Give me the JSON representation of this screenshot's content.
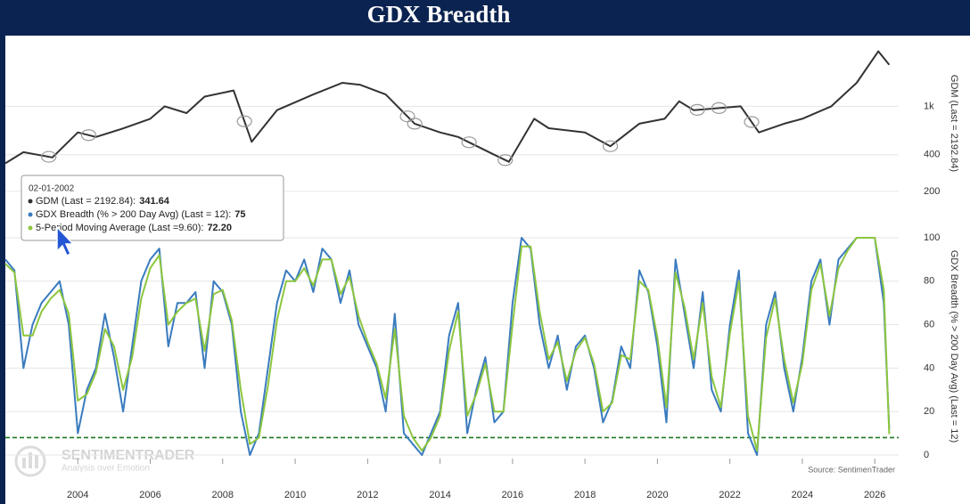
{
  "title": "GDX Breadth",
  "watermark": {
    "name": "SENTIMENTRADER",
    "tagline": "Analysis over Emotion"
  },
  "tooltip": {
    "date": "02-01-2002",
    "labels": [
      "GDM (Last = 2192.84):",
      "GDX Breadth (% > 200 Day Avg) (Last = 12):",
      "5-Period Moving Average (Last =9.60):"
    ],
    "values": [
      341.64,
      75,
      72.2
    ],
    "value_labels": [
      "341.64",
      "75",
      "72.20"
    ]
  },
  "chart_data": [
    {
      "type": "line",
      "y_scale": "log",
      "grid": true,
      "x": [
        2002.0,
        2002.5,
        2003.3,
        2004.0,
        2004.5,
        2005.2,
        2006.0,
        2006.4,
        2007.0,
        2007.5,
        2008.3,
        2008.8,
        2009.5,
        2010.5,
        2011.3,
        2011.8,
        2012.5,
        2013.3,
        2014.0,
        2014.5,
        2015.5,
        2015.9,
        2016.6,
        2017.0,
        2018.0,
        2018.7,
        2019.5,
        2020.2,
        2020.6,
        2021.0,
        2022.3,
        2022.8,
        2023.5,
        2024.0,
        2024.8,
        2025.5,
        2026.1,
        2026.4
      ],
      "series": [
        {
          "name": "GDM (Last = 2192.84)",
          "color": "#333333",
          "values": [
            340,
            420,
            380,
            610,
            560,
            650,
            790,
            1000,
            880,
            1200,
            1350,
            510,
            930,
            1250,
            1560,
            1500,
            1250,
            720,
            610,
            560,
            400,
            350,
            790,
            660,
            610,
            470,
            720,
            790,
            1100,
            930,
            1000,
            610,
            720,
            790,
            1000,
            1560,
            2830,
            2190
          ]
        }
      ],
      "ylim": [
        150,
        3500
      ],
      "yticks": [
        200,
        400,
        {
          "value": 1000,
          "label": "1k"
        }
      ],
      "xlim": [
        2002,
        2026.66
      ],
      "signals": {
        "x": [
          2003.2,
          2004.3,
          2008.6,
          2013.1,
          2013.3,
          2014.8,
          2015.8,
          2018.7,
          2021.1,
          2021.7,
          2022.6
        ],
        "color": "#999999"
      }
    },
    {
      "type": "line",
      "grid": true,
      "x": [
        2002.0,
        2002.25,
        2002.5,
        2002.75,
        2003.0,
        2003.25,
        2003.5,
        2003.75,
        2004.0,
        2004.25,
        2004.5,
        2004.75,
        2005.0,
        2005.25,
        2005.5,
        2005.75,
        2006.0,
        2006.25,
        2006.5,
        2006.75,
        2007.0,
        2007.25,
        2007.5,
        2007.75,
        2008.0,
        2008.25,
        2008.5,
        2008.75,
        2009.0,
        2009.25,
        2009.5,
        2009.75,
        2010.0,
        2010.25,
        2010.5,
        2010.75,
        2011.0,
        2011.25,
        2011.5,
        2011.75,
        2012.0,
        2012.25,
        2012.5,
        2012.75,
        2013.0,
        2013.25,
        2013.5,
        2013.75,
        2014.0,
        2014.25,
        2014.5,
        2014.75,
        2015.0,
        2015.25,
        2015.5,
        2015.75,
        2016.0,
        2016.25,
        2016.5,
        2016.75,
        2017.0,
        2017.25,
        2017.5,
        2017.75,
        2018.0,
        2018.25,
        2018.5,
        2018.75,
        2019.0,
        2019.25,
        2019.5,
        2019.75,
        2020.0,
        2020.25,
        2020.5,
        2020.75,
        2021.0,
        2021.25,
        2021.5,
        2021.75,
        2022.0,
        2022.25,
        2022.5,
        2022.75,
        2023.0,
        2023.25,
        2023.5,
        2023.75,
        2024.0,
        2024.25,
        2024.5,
        2024.75,
        2025.0,
        2025.25,
        2025.5,
        2025.75,
        2026.0,
        2026.25,
        2026.4
      ],
      "series": [
        {
          "name": "GDX Breadth (% > 200 Day Avg) (Last = 12)",
          "color": "#3a7bbf",
          "values": [
            90,
            85,
            40,
            60,
            70,
            75,
            80,
            60,
            10,
            30,
            40,
            65,
            45,
            20,
            50,
            80,
            90,
            95,
            50,
            70,
            70,
            75,
            40,
            80,
            75,
            60,
            20,
            0,
            10,
            40,
            70,
            85,
            80,
            90,
            75,
            95,
            90,
            70,
            85,
            60,
            50,
            40,
            20,
            65,
            10,
            5,
            0,
            10,
            20,
            55,
            70,
            10,
            30,
            45,
            15,
            20,
            70,
            100,
            95,
            60,
            40,
            55,
            30,
            50,
            55,
            40,
            15,
            25,
            50,
            40,
            85,
            75,
            50,
            15,
            90,
            65,
            40,
            75,
            30,
            20,
            60,
            85,
            10,
            0,
            60,
            75,
            40,
            20,
            45,
            80,
            90,
            60,
            90,
            95,
            100,
            100,
            100,
            70,
            12
          ]
        },
        {
          "name": "5-Period Moving Average (Last =9.60)",
          "color": "#8dc63f",
          "values": [
            88,
            84,
            55,
            55,
            66,
            72,
            76,
            65,
            25,
            28,
            38,
            58,
            50,
            30,
            45,
            72,
            86,
            92,
            60,
            66,
            70,
            72,
            48,
            74,
            76,
            62,
            30,
            5,
            8,
            32,
            62,
            80,
            80,
            86,
            78,
            90,
            90,
            74,
            82,
            64,
            52,
            42,
            26,
            58,
            18,
            8,
            2,
            8,
            18,
            48,
            66,
            18,
            28,
            42,
            20,
            20,
            60,
            96,
            96,
            66,
            44,
            52,
            34,
            48,
            54,
            42,
            20,
            24,
            46,
            44,
            80,
            76,
            54,
            22,
            84,
            68,
            44,
            70,
            36,
            22,
            56,
            80,
            18,
            2,
            54,
            72,
            44,
            24,
            42,
            76,
            88,
            64,
            86,
            94,
            100,
            100,
            100,
            76,
            9.6
          ]
        }
      ],
      "ylim": [
        0,
        100
      ],
      "yticks": [
        0,
        20,
        40,
        60,
        80,
        100
      ],
      "xlim": [
        2002,
        2026.66
      ],
      "xticks": [
        2004,
        2006,
        2008,
        2010,
        2012,
        2014,
        2016,
        2018,
        2020,
        2022,
        2024,
        2026
      ],
      "reference_line": {
        "value": 8,
        "color": "#1e7a1e"
      },
      "source": "Source: SentimenTrader"
    }
  ]
}
